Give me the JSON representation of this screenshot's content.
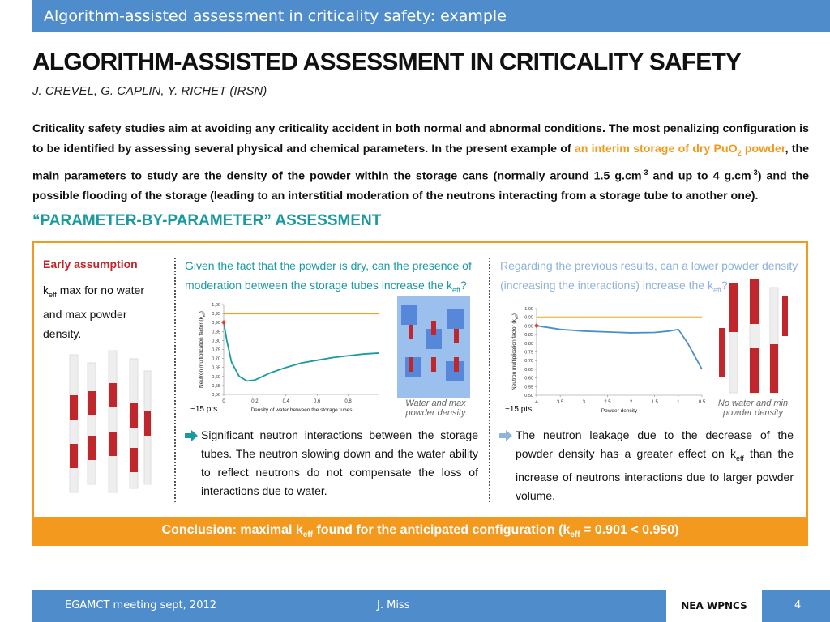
{
  "header": {
    "title": "Algorithm-assisted assessment in criticality safety: example"
  },
  "title": "ALGORITHM-ASSISTED ASSESSMENT IN CRITICALITY SAFETY",
  "authors": "J. CREVEL, G. CAPLIN, Y. RICHET (IRSN)",
  "intro": [
    "Criticality safety studies aim at avoiding any criticality accident in both normal and abnormal conditions. The most penalizing configuration is to be identified by assessing several physical and chemical parameters. In the present example of ",
    "an interim storage of dry PuO",
    "2",
    " powder",
    ", the main parameters to study are the density of the powder within the storage cans (normally around 1.5 g.cm",
    "-3",
    " and up to 4 g.cm",
    "-3",
    ") and the possible flooding of the storage (leading to an interstitial moderation of the neutrons interacting from a storage tube to another one)."
  ],
  "section": "“PARAMETER-BY-PARAMETER” ASSESSMENT",
  "panels": [
    {
      "heading": "Early assumption",
      "text": [
        "k",
        "eff",
        " max for no water and max powder density."
      ]
    },
    {
      "question": [
        "Given the fact that the powder is dry, can the presence of moderation between the storage tubes increase the k",
        "eff",
        "?"
      ],
      "chart": {
        "type": "line",
        "ylabel": [
          "Neutron multiplication factor (k",
          "eff",
          ")"
        ],
        "xlabel": "Density of water between the storage tubes",
        "x": [
          0,
          0.02,
          0.05,
          0.1,
          0.15,
          0.2,
          0.3,
          0.4,
          0.5,
          0.6,
          0.7,
          0.8,
          0.9,
          1.0
        ],
        "values": [
          0.901,
          0.8,
          0.68,
          0.6,
          0.575,
          0.58,
          0.62,
          0.65,
          0.675,
          0.69,
          0.705,
          0.715,
          0.725,
          0.73
        ],
        "color": "#1a9aa0",
        "xlim": [
          0,
          1
        ],
        "ylim": [
          0.5,
          1.0
        ],
        "xticks": [
          0,
          0.2,
          0.4,
          0.6,
          0.8
        ],
        "yticks": [
          {
            "value": 0.5,
            "label": "0,50"
          },
          {
            "value": 0.55,
            "label": "0,55"
          },
          {
            "value": 0.6,
            "label": "0,60"
          },
          {
            "value": 0.65,
            "label": "0,65"
          },
          {
            "value": 0.7,
            "label": "0,70"
          },
          {
            "value": 0.75,
            "label": "0,75"
          },
          {
            "value": 0.8,
            "label": "0,80"
          },
          {
            "value": 0.85,
            "label": "0,85"
          },
          {
            "value": 0.9,
            "label": "0,90"
          },
          {
            "value": 0.95,
            "label": "0,95"
          },
          {
            "value": 1.0,
            "label": "1,00"
          }
        ],
        "threshold": {
          "value": 0.95,
          "color": "#f5a01a"
        },
        "marker": {
          "x": 0,
          "y": 0.901,
          "color": "#e0402a"
        }
      },
      "points": "~15 pts",
      "caption": "Water and max powder density",
      "bullet": "Significant neutron interactions between the storage tubes. The neutron slowing down and the water ability to reflect neutrons do not compensate the loss of interactions due to water."
    },
    {
      "question": [
        "Regarding the previous results, can a lower powder density (increasing the interactions) increase the k",
        "eff",
        "?"
      ],
      "chart": {
        "type": "line",
        "ylabel": [
          "Neutron multiplication factor (k",
          "eff",
          ")"
        ],
        "xlabel": "Powder density",
        "x": [
          4,
          3.5,
          3,
          2.5,
          2,
          1.5,
          1.2,
          1,
          0.8,
          0.5
        ],
        "values": [
          0.901,
          0.88,
          0.87,
          0.865,
          0.86,
          0.862,
          0.87,
          0.88,
          0.8,
          0.65
        ],
        "color": "#4a90c8",
        "xlim": [
          4,
          0.5
        ],
        "ylim": [
          0.5,
          1.0
        ],
        "xticks": [
          4,
          3.5,
          3,
          2.5,
          2,
          1.5,
          1,
          0.5
        ],
        "yticks": [
          {
            "value": 0.5,
            "label": "0,50"
          },
          {
            "value": 0.55,
            "label": "0,55"
          },
          {
            "value": 0.6,
            "label": "0,60"
          },
          {
            "value": 0.65,
            "label": "0,65"
          },
          {
            "value": 0.7,
            "label": "0,70"
          },
          {
            "value": 0.75,
            "label": "0,75"
          },
          {
            "value": 0.8,
            "label": "0,80"
          },
          {
            "value": 0.85,
            "label": "0,85"
          },
          {
            "value": 0.9,
            "label": "0,90"
          },
          {
            "value": 0.95,
            "label": "0,95"
          },
          {
            "value": 1.0,
            "label": "1,00"
          }
        ],
        "threshold": {
          "value": 0.95,
          "color": "#f5a01a"
        },
        "marker": {
          "x": 4,
          "y": 0.901,
          "color": "#e0402a"
        }
      },
      "points": "~15 pts",
      "caption": "No water and min powder density",
      "bullet": [
        "The neutron leakage due to the decrease of the powder density has a greater effect on k",
        "eff",
        " than the increase of neutrons interactions due to larger powder volume."
      ]
    }
  ],
  "conclusion": [
    "Conclusion: maximal k",
    "eff",
    " found for the anticipated configuration (k",
    "eff",
    " = 0.901 < 0.950)"
  ],
  "footer": {
    "event": "EGAMCT meeting sept, 2012",
    "author": "J. Miss",
    "org": "NEA WPNCS",
    "page": "4"
  }
}
